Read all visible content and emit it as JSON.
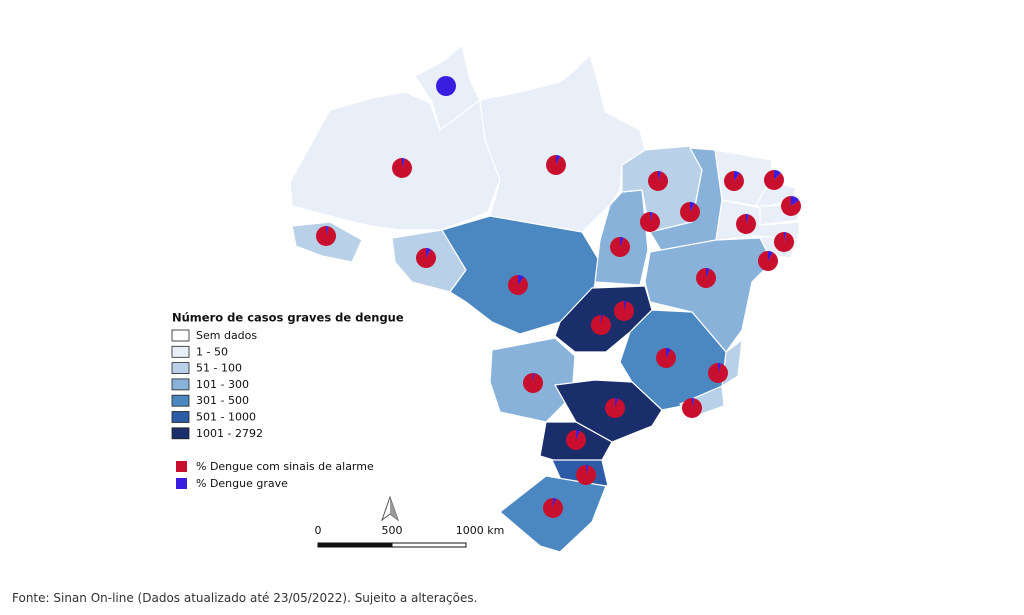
{
  "legend": {
    "title": "Número de casos graves de dengue",
    "classes": [
      {
        "label": "Sem dados",
        "color": "#ffffff"
      },
      {
        "label": "1 - 50",
        "color": "#e9eff8"
      },
      {
        "label": "51 - 100",
        "color": "#b8d1e9"
      },
      {
        "label": "101 - 300",
        "color": "#89b2da"
      },
      {
        "label": "301 - 500",
        "color": "#4b87c1"
      },
      {
        "label": "501 - 1000",
        "color": "#2d5ba8"
      },
      {
        "label": "1001 - 2792",
        "color": "#1b2e6c"
      }
    ],
    "pie_items": [
      {
        "label": "% Dengue com sinais de alarme",
        "color": "#c8102e"
      },
      {
        "label": "% Dengue grave",
        "color": "#3a1ee0"
      }
    ]
  },
  "pies": [
    {
      "alarme": 0,
      "grave": 100
    },
    {
      "alarme": 95,
      "grave": 5
    },
    {
      "alarme": 93,
      "grave": 7
    },
    {
      "alarme": 96,
      "grave": 4
    },
    {
      "alarme": 92,
      "grave": 8
    },
    {
      "alarme": 90,
      "grave": 10
    },
    {
      "alarme": 94,
      "grave": 6
    },
    {
      "alarme": 95,
      "grave": 5
    },
    {
      "alarme": 92,
      "grave": 8
    },
    {
      "alarme": 90,
      "grave": 10
    },
    {
      "alarme": 88,
      "grave": 12
    },
    {
      "alarme": 85,
      "grave": 15
    },
    {
      "alarme": 95,
      "grave": 5
    },
    {
      "alarme": 96,
      "grave": 4
    },
    {
      "alarme": 92,
      "grave": 8
    },
    {
      "alarme": 94,
      "grave": 6
    },
    {
      "alarme": 97,
      "grave": 3
    },
    {
      "alarme": 96,
      "grave": 4
    },
    {
      "alarme": 92,
      "grave": 8
    },
    {
      "alarme": 95,
      "grave": 5
    },
    {
      "alarme": 96,
      "grave": 4
    },
    {
      "alarme": 97,
      "grave": 3
    },
    {
      "alarme": 95,
      "grave": 5
    },
    {
      "alarme": 94,
      "grave": 6
    },
    {
      "alarme": 96,
      "grave": 4
    },
    {
      "alarme": 95,
      "grave": 5
    },
    {
      "alarme": 96,
      "grave": 4
    }
  ],
  "scale_bar": {
    "labels": [
      "0",
      "500",
      "1000 km"
    ]
  },
  "source": "Fonte: Sinan On-line (Dados atualizado até 23/05/2022). Sujeito a alterações."
}
